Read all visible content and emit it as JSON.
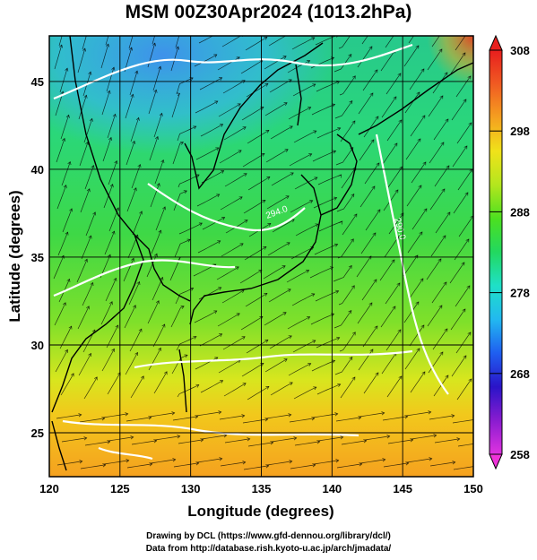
{
  "title": "MSM 00Z30Apr2024 (1013.2hPa)",
  "xlabel": "Longitude (degrees)",
  "ylabel": "Latitude  (degrees)",
  "x_ticks": [
    "120",
    "125",
    "130",
    "135",
    "140",
    "145",
    "150"
  ],
  "y_ticks": [
    "25",
    "30",
    "35",
    "40",
    "45"
  ],
  "colorbar": {
    "ticks": [
      "308",
      "298",
      "288",
      "278",
      "268",
      "258"
    ],
    "min": 258,
    "max": 308,
    "colors": [
      "#e033e0",
      "#8a1cd0",
      "#2a14c8",
      "#1f5ef0",
      "#22b8f0",
      "#1fe0c8",
      "#22d860",
      "#4ce020",
      "#b4e61e",
      "#f0e21a",
      "#f5a020",
      "#f05a22",
      "#e81e1e"
    ]
  },
  "contour_labels": [
    "294.0",
    "290.0"
  ],
  "credits": {
    "line1": "Drawing by DCL (https://www.gfd-dennou.org/library/dcl/)",
    "line2": "Data from http://database.rish.kyoto-u.ac.jp/arch/jmadata/"
  }
}
